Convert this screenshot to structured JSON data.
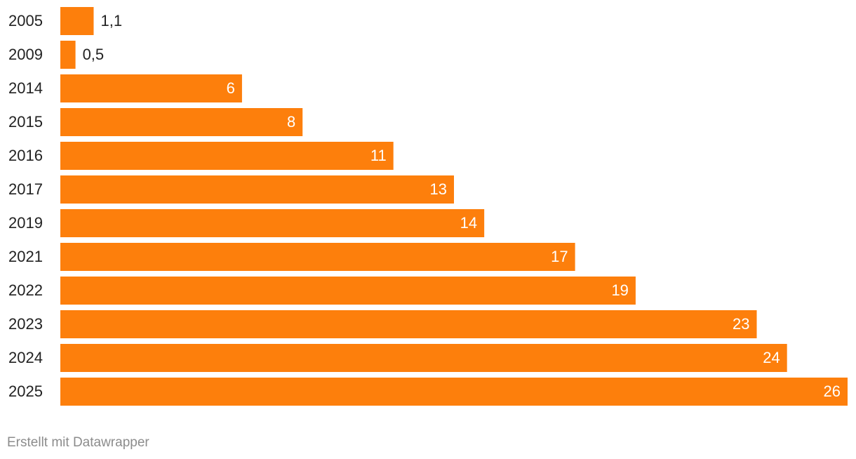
{
  "chart_data": {
    "type": "bar",
    "orientation": "horizontal",
    "categories": [
      "2005",
      "2009",
      "2014",
      "2015",
      "2016",
      "2017",
      "2019",
      "2021",
      "2022",
      "2023",
      "2024",
      "2025"
    ],
    "values": [
      1.1,
      0.5,
      6,
      8,
      11,
      13,
      14,
      17,
      19,
      23,
      24,
      26
    ],
    "value_labels": [
      "1,1",
      "0,5",
      "6",
      "8",
      "11",
      "13",
      "14",
      "17",
      "19",
      "23",
      "24",
      "26"
    ],
    "color": "#fd7f0c",
    "xlim": [
      0,
      26
    ],
    "footer": "Erstellt mit Datawrapper"
  }
}
